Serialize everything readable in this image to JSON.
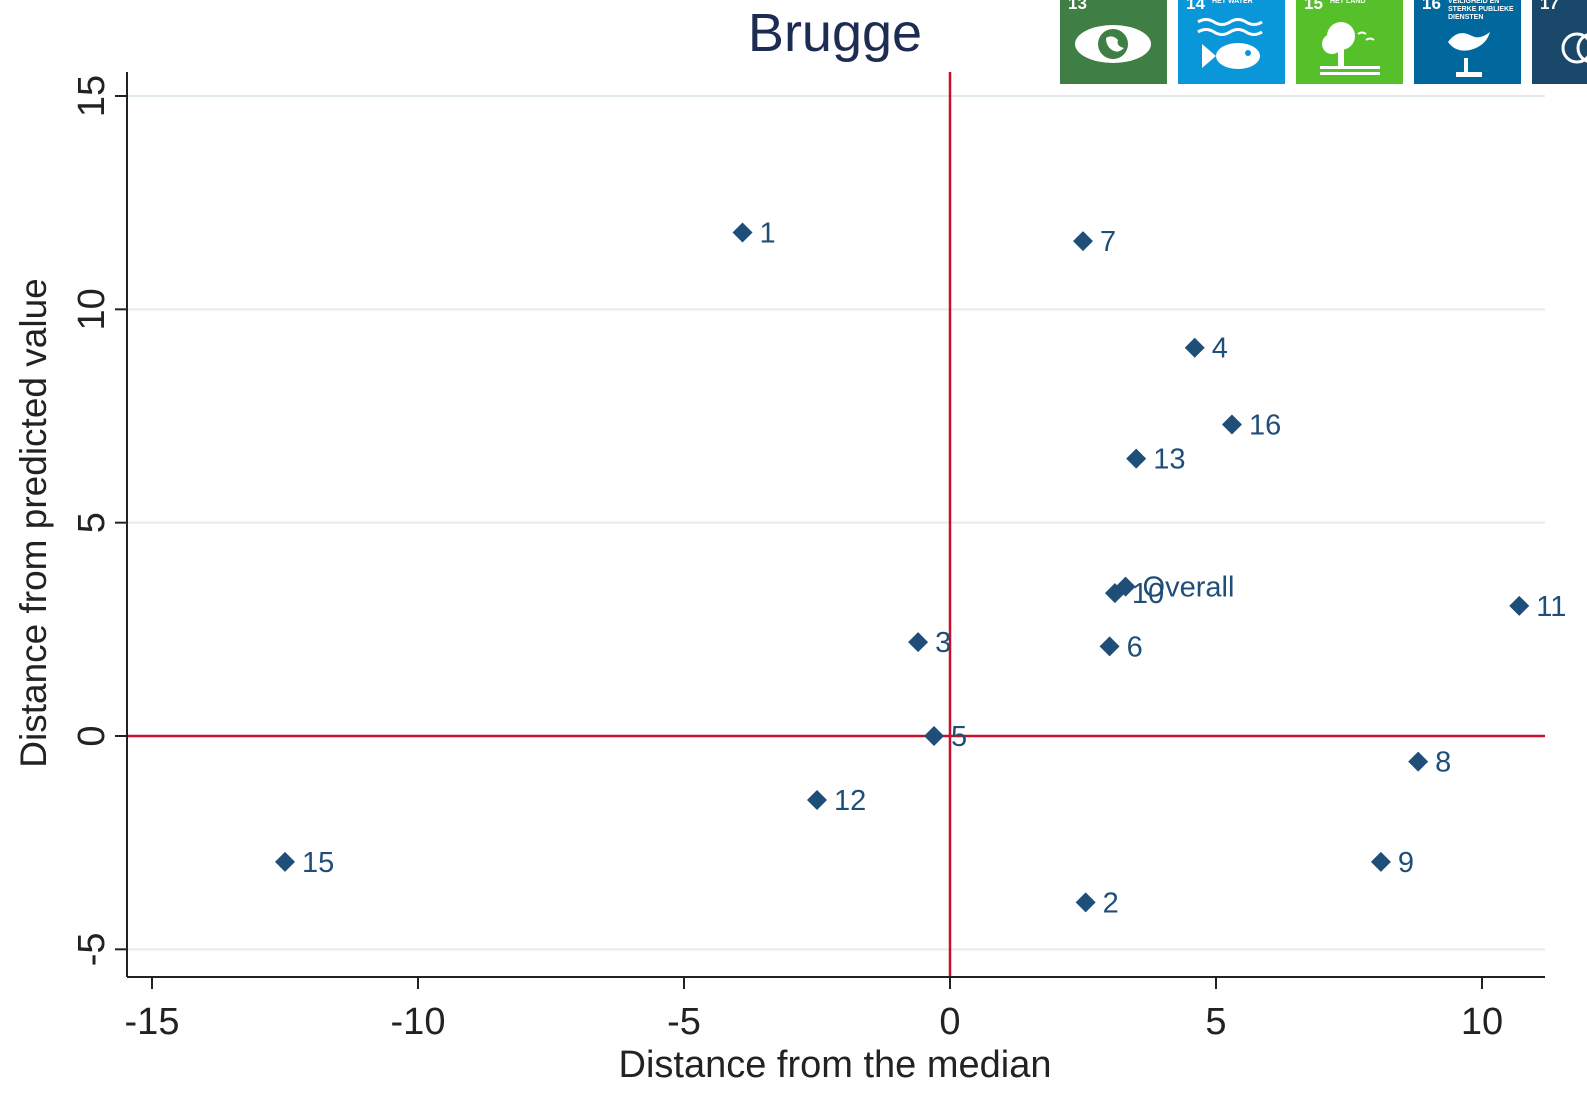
{
  "chart_data": {
    "type": "scatter",
    "title": "Brugge",
    "xlabel": "Distance from the median",
    "ylabel": "Distance from predicted value",
    "xlim": [
      -15.5,
      11.2
    ],
    "ylim": [
      -5.6,
      15.6
    ],
    "xticks": [
      -15,
      -10,
      -5,
      0,
      5,
      10
    ],
    "yticks": [
      -5,
      0,
      5,
      10,
      15
    ],
    "xtick_labels": [
      "-15",
      "-10",
      "-5",
      "0",
      "5",
      "10"
    ],
    "ytick_labels": [
      "-5",
      "0",
      "5",
      "10",
      "15"
    ],
    "grid": "horizontal",
    "reference_lines": {
      "x": 0,
      "y": 0,
      "color": "#c8102e"
    },
    "marker_color": "#1f4e79",
    "label_color": "#1f4e79",
    "points": [
      {
        "label": "1",
        "x": -3.9,
        "y": 11.8
      },
      {
        "label": "7",
        "x": 2.5,
        "y": 11.6
      },
      {
        "label": "4",
        "x": 4.6,
        "y": 9.1
      },
      {
        "label": "16",
        "x": 5.3,
        "y": 7.3
      },
      {
        "label": "13",
        "x": 3.5,
        "y": 6.5
      },
      {
        "label": "Overall",
        "x": 3.3,
        "y": 3.5
      },
      {
        "label": "10",
        "x": 3.1,
        "y": 3.35
      },
      {
        "label": "11",
        "x": 10.7,
        "y": 3.05
      },
      {
        "label": "3",
        "x": -0.6,
        "y": 2.2
      },
      {
        "label": "6",
        "x": 3.0,
        "y": 2.1
      },
      {
        "label": "5",
        "x": -0.3,
        "y": 0.0
      },
      {
        "label": "8",
        "x": 8.8,
        "y": -0.6
      },
      {
        "label": "12",
        "x": -2.5,
        "y": -1.5
      },
      {
        "label": "15",
        "x": -12.5,
        "y": -2.95
      },
      {
        "label": "9",
        "x": 8.1,
        "y": -2.95
      },
      {
        "label": "2",
        "x": 2.55,
        "y": -3.9
      }
    ]
  },
  "sdg_tiles": [
    {
      "number": "13",
      "caption": "",
      "color": "#3f7e44",
      "icon": "eye-globe-icon"
    },
    {
      "number": "14",
      "caption": "Het water",
      "color": "#0a97d9",
      "icon": "fish-icon"
    },
    {
      "number": "15",
      "caption": "Het land",
      "color": "#56c02b",
      "icon": "tree-icon"
    },
    {
      "number": "16",
      "caption": "Veiligheid en sterke publieke diensten",
      "color": "#00689d",
      "icon": "dove-gavel-icon"
    },
    {
      "number": "17",
      "caption": "",
      "color": "#19486a",
      "icon": "rings-icon"
    }
  ]
}
